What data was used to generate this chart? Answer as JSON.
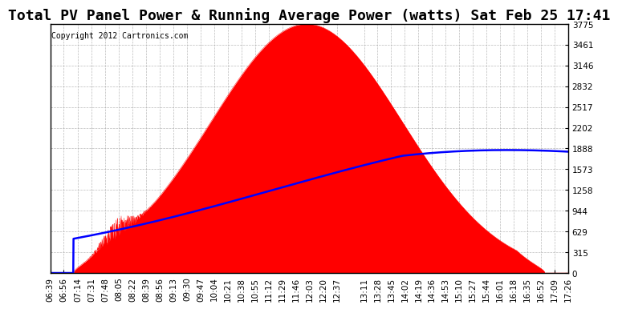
{
  "title": "Total PV Panel Power & Running Average Power (watts) Sat Feb 25 17:41",
  "copyright": "Copyright 2012 Cartronics.com",
  "background_color": "#ffffff",
  "plot_bg_color": "#ffffff",
  "grid_color": "#aaaaaa",
  "fill_color": "#ff0000",
  "line_color": "#0000ff",
  "yticks": [
    0.0,
    314.6,
    629.2,
    943.8,
    1258.4,
    1573.0,
    1887.6,
    2202.2,
    2516.9,
    2831.5,
    3146.1,
    3460.7,
    3775.3
  ],
  "ymax": 3775.3,
  "ymin": 0.0,
  "xtick_labels": [
    "06:39",
    "06:56",
    "07:14",
    "07:31",
    "07:48",
    "08:05",
    "08:22",
    "08:39",
    "08:56",
    "09:13",
    "09:30",
    "09:47",
    "10:04",
    "10:21",
    "10:38",
    "10:55",
    "11:12",
    "11:29",
    "11:46",
    "12:03",
    "12:20",
    "12:37",
    "13:11",
    "13:28",
    "13:45",
    "14:02",
    "14:19",
    "14:36",
    "14:53",
    "15:10",
    "15:27",
    "15:44",
    "16:01",
    "16:18",
    "16:35",
    "16:52",
    "17:09",
    "17:26"
  ],
  "title_fontsize": 13,
  "tick_fontsize": 7.5,
  "copyright_fontsize": 7
}
